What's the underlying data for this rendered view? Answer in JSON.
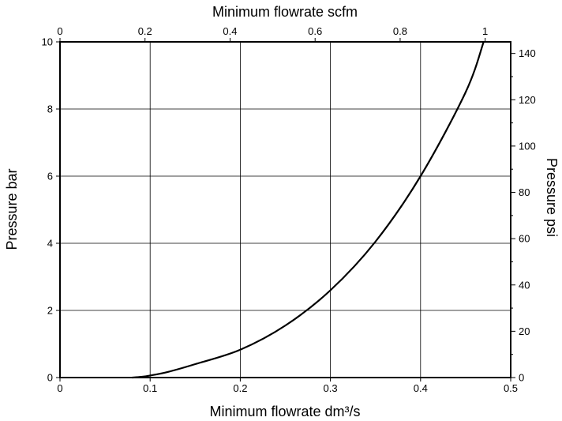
{
  "chart_data": {
    "type": "line",
    "title": "",
    "xlabel": "Minimum flowrate dm³/s",
    "ylabel": "Pressure bar",
    "x2label": "Minimum flowrate scfm",
    "y2label": "Pressure psi",
    "xlim": [
      0,
      0.5
    ],
    "ylim": [
      0,
      10
    ],
    "x2lim": [
      0,
      1.06
    ],
    "y2lim": [
      0,
      145
    ],
    "grid": true,
    "x_ticks": [
      "0",
      "0.1",
      "0.2",
      "0.3",
      "0.4",
      "0.5"
    ],
    "y_ticks": [
      "0",
      "2",
      "4",
      "6",
      "8",
      "10"
    ],
    "x2_ticks": [
      "0",
      "0.2",
      "0.4",
      "0.6",
      "0.8",
      "1"
    ],
    "y2_ticks": [
      "0",
      "20",
      "40",
      "60",
      "80",
      "100",
      "120",
      "140"
    ],
    "series": [
      {
        "x": [
          0.08,
          0.09,
          0.1,
          0.12,
          0.15,
          0.2,
          0.25,
          0.3,
          0.35,
          0.4,
          0.45,
          0.47
        ],
        "y": [
          0.0,
          0.02,
          0.06,
          0.17,
          0.4,
          0.83,
          1.55,
          2.6,
          4.05,
          6.0,
          8.5,
          10.0
        ]
      }
    ]
  }
}
